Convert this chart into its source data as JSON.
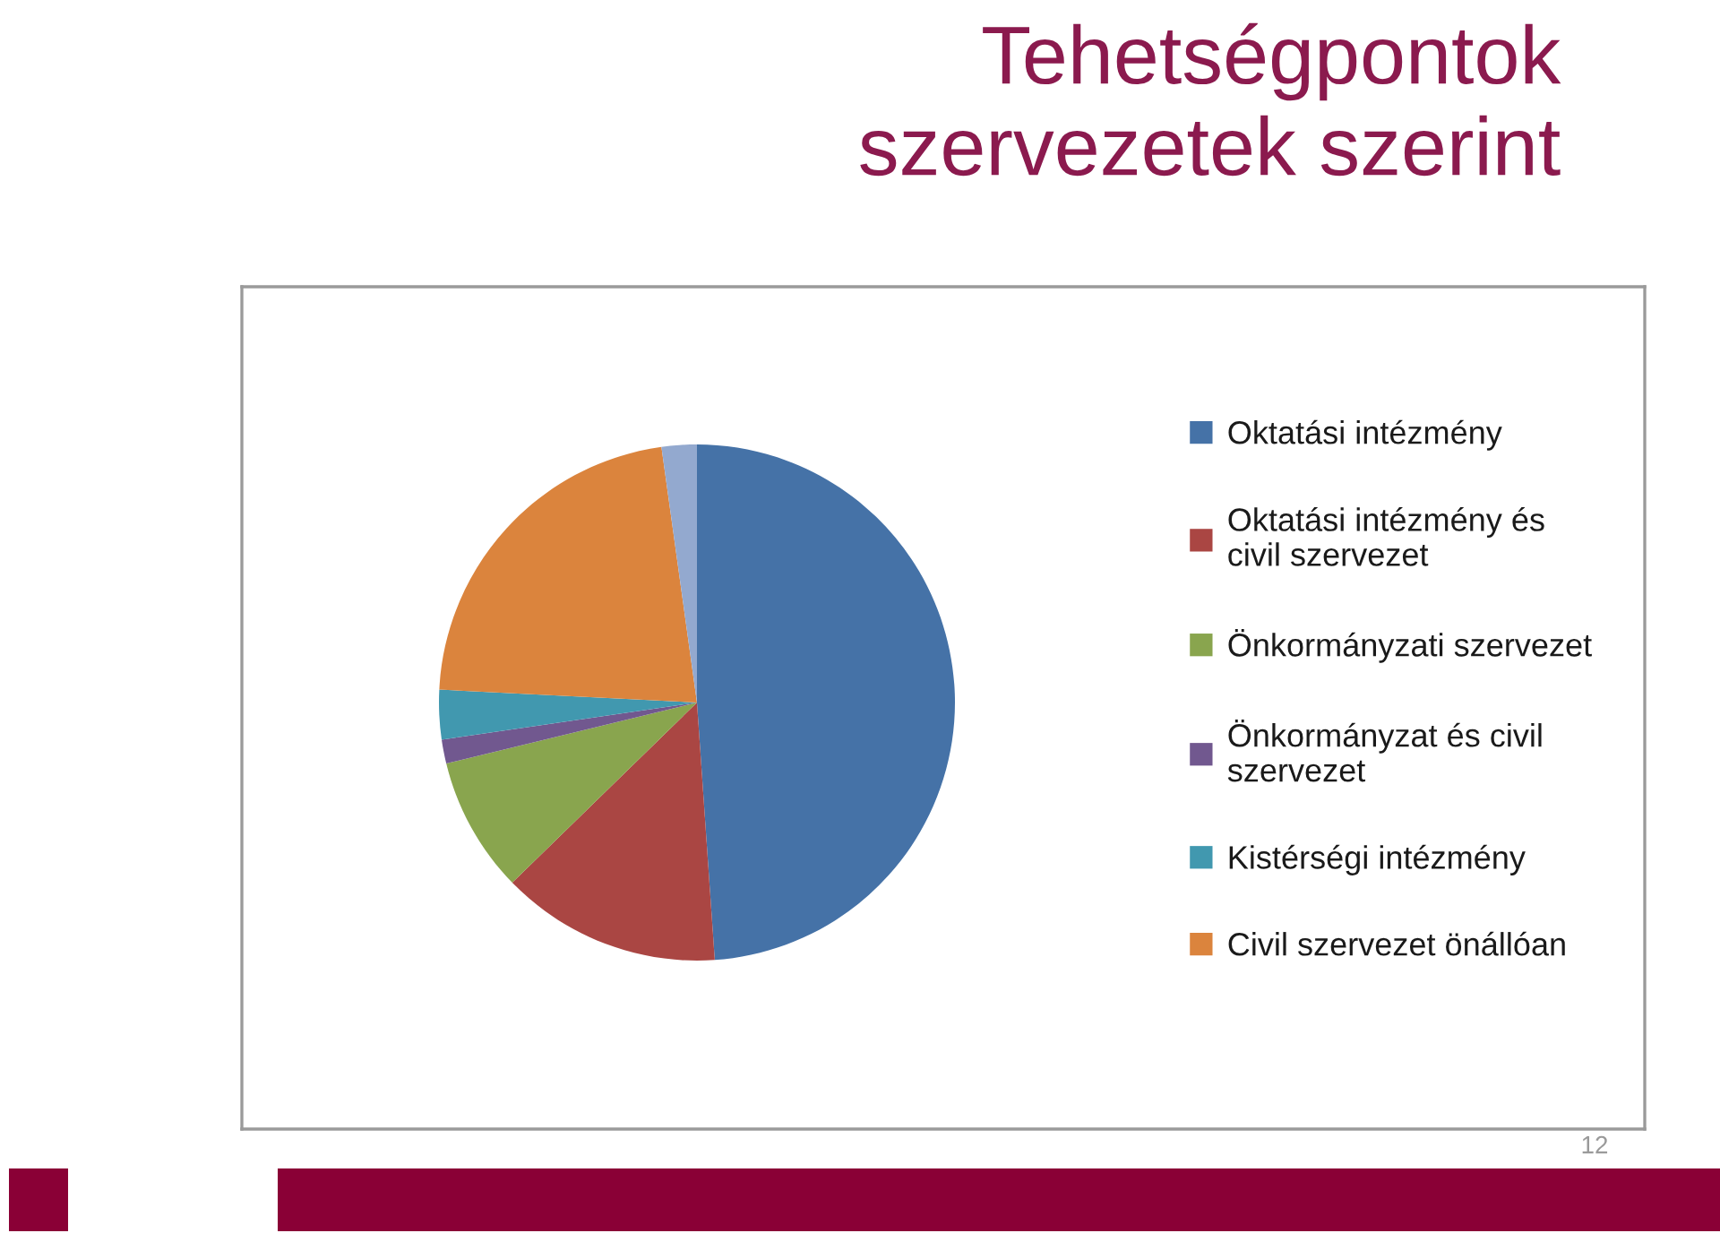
{
  "chart_data": {
    "type": "pie",
    "title": "Tehetségpontok szervezetek szerint",
    "categories": [
      "Oktatási intézmény",
      "Oktatási intézmény és civil szervezet",
      "Önkormányzati szervezet",
      "Önkormányzat és civil szervezet",
      "Kistérségi intézmény",
      "Civil szervezet önállóan",
      null
    ],
    "values": [
      48.9,
      13.8,
      8.5,
      1.5,
      3.1,
      22.0,
      2.2
    ],
    "colors": [
      "#4572a7",
      "#aa4643",
      "#89a54e",
      "#71588f",
      "#4198af",
      "#db843d",
      "#93a9cf"
    ],
    "legend": "right",
    "annotations": [
      "12"
    ]
  }
}
